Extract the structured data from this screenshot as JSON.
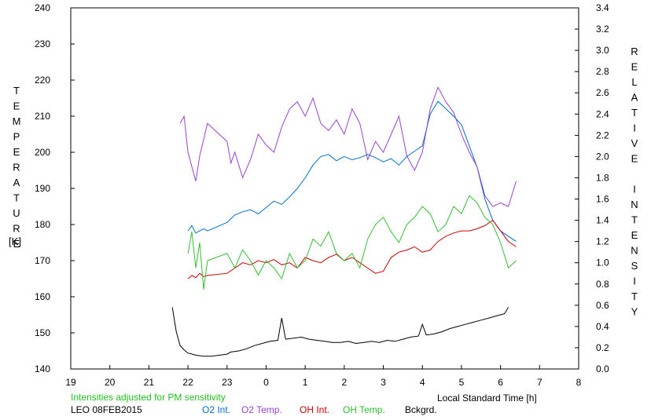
{
  "chart_data": {
    "type": "line",
    "title": "LEO 08FEB2015",
    "note": "Intensities adjusted for PM sensitivity",
    "xlabel": "Local Standard Time [h]",
    "ylabel_left": "TEMPERATURE",
    "ylabel_left_unit": "[K]",
    "ylabel_right": "RELATIVE INTENSITY",
    "x_ticks": [
      "19",
      "20",
      "21",
      "22",
      "23",
      "0",
      "1",
      "2",
      "3",
      "4",
      "5",
      "6",
      "7",
      "8"
    ],
    "xlim": [
      19,
      32
    ],
    "ylim_left": [
      140,
      240
    ],
    "yticks_left": [
      "140",
      "150",
      "160",
      "170",
      "180",
      "190",
      "200",
      "210",
      "220",
      "230",
      "240"
    ],
    "ylim_right": [
      0.0,
      3.4
    ],
    "yticks_right": [
      "0.0",
      "0.2",
      "0.4",
      "0.6",
      "0.8",
      "1.0",
      "1.2",
      "1.4",
      "1.6",
      "1.8",
      "2.0",
      "2.2",
      "2.4",
      "2.6",
      "2.8",
      "3.0",
      "3.2",
      "3.4"
    ],
    "grid": false,
    "legend_position": "bottom",
    "series": [
      {
        "name": "O2 Int.",
        "axis": "right",
        "color": "#0070d0",
        "x": [
          22.0,
          22.1,
          22.2,
          22.4,
          22.5,
          23.0,
          23.2,
          23.4,
          23.6,
          23.8,
          24.0,
          24.2,
          24.4,
          24.6,
          24.8,
          25.0,
          25.2,
          25.4,
          25.6,
          25.8,
          26.0,
          26.2,
          26.4,
          26.6,
          26.8,
          27.0,
          27.2,
          27.4,
          27.6,
          27.8,
          28.0,
          28.2,
          28.4,
          28.6,
          28.8,
          29.0,
          29.2,
          29.4,
          29.6,
          29.8,
          30.0,
          30.2,
          30.4
        ],
        "values": [
          1.3,
          1.35,
          1.28,
          1.32,
          1.3,
          1.38,
          1.45,
          1.48,
          1.5,
          1.46,
          1.52,
          1.58,
          1.55,
          1.62,
          1.7,
          1.8,
          1.92,
          2.0,
          2.02,
          1.96,
          2.0,
          1.97,
          1.99,
          2.02,
          1.99,
          1.95,
          1.98,
          1.92,
          2.0,
          2.05,
          2.1,
          2.4,
          2.52,
          2.45,
          2.38,
          2.3,
          2.1,
          1.9,
          1.6,
          1.4,
          1.3,
          1.25,
          1.2
        ]
      },
      {
        "name": "O2 Temp.",
        "axis": "left",
        "color": "#9a40d8",
        "x": [
          21.8,
          21.9,
          22.0,
          22.1,
          22.2,
          22.3,
          22.5,
          23.0,
          23.1,
          23.2,
          23.4,
          23.6,
          23.8,
          24.0,
          24.2,
          24.4,
          24.6,
          24.8,
          25.0,
          25.2,
          25.4,
          25.6,
          25.8,
          26.0,
          26.2,
          26.4,
          26.6,
          26.8,
          27.0,
          27.2,
          27.4,
          27.6,
          27.8,
          28.0,
          28.2,
          28.4,
          28.6,
          28.8,
          29.0,
          29.2,
          29.4,
          29.6,
          29.8,
          30.0,
          30.2,
          30.4
        ],
        "values": [
          208,
          210,
          200,
          196,
          192,
          199,
          208,
          203,
          197,
          200,
          193,
          198,
          205,
          202,
          200,
          207,
          212,
          214,
          210,
          215,
          208,
          206,
          209,
          205,
          212,
          208,
          198,
          203,
          200,
          205,
          210,
          199,
          195,
          200,
          212,
          218,
          214,
          211,
          205,
          200,
          196,
          188,
          185,
          186,
          185,
          192
        ]
      },
      {
        "name": "OH Int.",
        "axis": "right",
        "color": "#d00000",
        "x": [
          22.0,
          22.1,
          22.2,
          22.3,
          22.4,
          22.5,
          23.0,
          23.2,
          23.4,
          23.6,
          23.8,
          24.0,
          24.2,
          24.4,
          24.6,
          24.8,
          25.0,
          25.2,
          25.4,
          25.6,
          25.8,
          26.0,
          26.2,
          26.4,
          26.6,
          26.8,
          27.0,
          27.2,
          27.4,
          27.6,
          27.8,
          28.0,
          28.2,
          28.4,
          28.6,
          28.8,
          29.0,
          29.2,
          29.4,
          29.6,
          29.8,
          30.0,
          30.2,
          30.4
        ],
        "values": [
          0.85,
          0.88,
          0.86,
          0.9,
          0.87,
          0.88,
          0.9,
          0.95,
          1.0,
          0.98,
          1.02,
          1.0,
          1.03,
          0.98,
          1.0,
          0.95,
          1.05,
          1.02,
          1.0,
          1.05,
          1.08,
          1.02,
          1.05,
          1.0,
          0.95,
          0.9,
          0.92,
          1.05,
          1.1,
          1.12,
          1.15,
          1.1,
          1.12,
          1.2,
          1.25,
          1.28,
          1.3,
          1.3,
          1.32,
          1.35,
          1.4,
          1.3,
          1.2,
          1.15
        ]
      },
      {
        "name": "OH Temp.",
        "axis": "left",
        "color": "#30c030",
        "x": [
          22.0,
          22.1,
          22.2,
          22.3,
          22.4,
          22.5,
          23.0,
          23.2,
          23.4,
          23.6,
          23.8,
          24.0,
          24.2,
          24.4,
          24.6,
          24.8,
          25.0,
          25.2,
          25.4,
          25.6,
          25.8,
          26.0,
          26.2,
          26.4,
          26.6,
          26.8,
          27.0,
          27.2,
          27.4,
          27.6,
          27.8,
          28.0,
          28.2,
          28.4,
          28.6,
          28.8,
          29.0,
          29.2,
          29.4,
          29.6,
          29.8,
          30.0,
          30.2,
          30.4
        ],
        "values": [
          172,
          178,
          168,
          175,
          162,
          170,
          172,
          168,
          173,
          170,
          166,
          170,
          168,
          165,
          172,
          168,
          170,
          176,
          174,
          178,
          172,
          170,
          172,
          168,
          176,
          180,
          182,
          178,
          175,
          180,
          182,
          185,
          183,
          178,
          180,
          185,
          183,
          188,
          186,
          182,
          180,
          175,
          168,
          170
        ]
      },
      {
        "name": "Bckgrd.",
        "axis": "right",
        "color": "#000000",
        "x": [
          21.6,
          21.7,
          21.8,
          21.9,
          22.0,
          22.2,
          22.4,
          22.6,
          23.0,
          23.1,
          23.3,
          23.5,
          23.7,
          23.9,
          24.1,
          24.3,
          24.4,
          24.5,
          24.7,
          24.9,
          25.1,
          25.3,
          25.5,
          25.7,
          25.9,
          26.1,
          26.3,
          26.5,
          26.7,
          26.9,
          27.1,
          27.3,
          27.5,
          27.7,
          27.9,
          28.0,
          28.1,
          28.3,
          28.5,
          28.7,
          28.9,
          29.1,
          29.3,
          29.5,
          29.7,
          29.9,
          30.1,
          30.2
        ],
        "values": [
          0.58,
          0.35,
          0.22,
          0.18,
          0.15,
          0.13,
          0.12,
          0.12,
          0.14,
          0.16,
          0.17,
          0.19,
          0.22,
          0.24,
          0.26,
          0.27,
          0.48,
          0.28,
          0.29,
          0.3,
          0.28,
          0.27,
          0.26,
          0.25,
          0.25,
          0.26,
          0.24,
          0.25,
          0.26,
          0.25,
          0.27,
          0.26,
          0.28,
          0.3,
          0.31,
          0.42,
          0.32,
          0.33,
          0.35,
          0.38,
          0.4,
          0.42,
          0.44,
          0.46,
          0.48,
          0.5,
          0.52,
          0.58
        ]
      }
    ]
  }
}
